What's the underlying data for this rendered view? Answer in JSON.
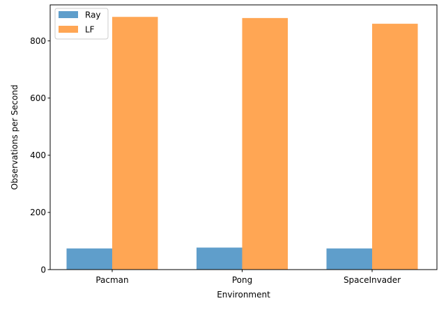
{
  "chart_data": {
    "type": "bar",
    "title": "",
    "xlabel": "Environment",
    "ylabel": "Observations per Second",
    "categories": [
      "Pacman",
      "Pong",
      "SpaceInvader"
    ],
    "series": [
      {
        "name": "Ray",
        "values": [
          74,
          77,
          74
        ],
        "color": "#5f9ecb"
      },
      {
        "name": "LF",
        "values": [
          884,
          880,
          860
        ],
        "color": "#ffa654"
      }
    ],
    "ylim": [
      0,
      926
    ],
    "yticks": [
      0,
      200,
      400,
      600,
      800
    ],
    "grid": false,
    "legend_position": "top-left"
  }
}
